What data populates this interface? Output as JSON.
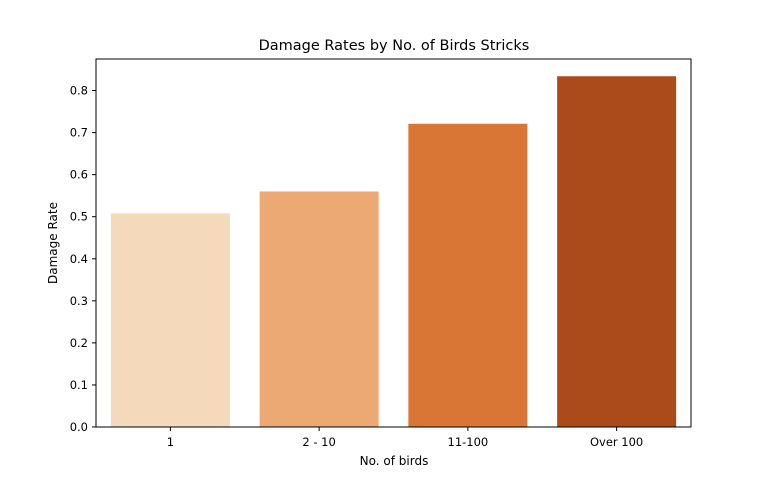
{
  "chart_data": {
    "type": "bar",
    "title": "Damage Rates by No. of Birds Stricks",
    "xlabel": "No. of birds",
    "ylabel": "Damage Rate",
    "categories": [
      "1",
      "2 - 10",
      "11-100",
      "Over 100"
    ],
    "values": [
      0.508,
      0.56,
      0.721,
      0.834
    ],
    "colors": [
      "#f5d9bb",
      "#eca974",
      "#d97635",
      "#ab4a1a"
    ],
    "ylim": [
      0,
      0.875
    ],
    "yticks": [
      "0.0",
      "0.1",
      "0.2",
      "0.3",
      "0.4",
      "0.5",
      "0.6",
      "0.7",
      "0.8"
    ],
    "grid": false,
    "legend": "none"
  }
}
